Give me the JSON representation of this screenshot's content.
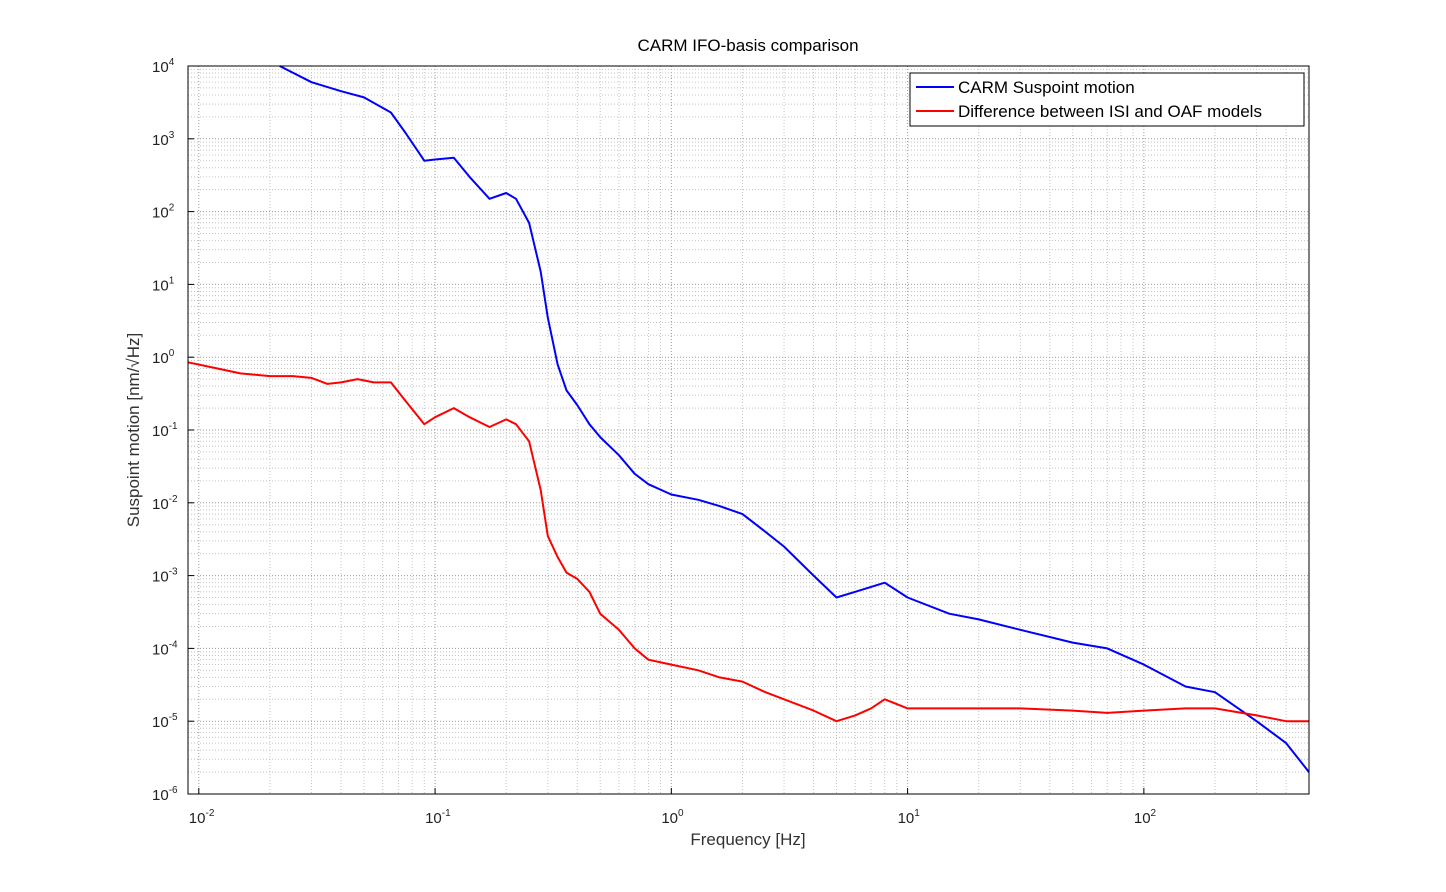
{
  "chart_data": {
    "type": "line",
    "title": "CARM IFO-basis comparison",
    "xlabel": "Frequency [Hz]",
    "ylabel": "Suspoint motion [nm/√Hz]",
    "xscale": "log",
    "yscale": "log",
    "xlim": [
      0.009,
      500
    ],
    "ylim": [
      1e-06,
      10000
    ],
    "grid": true,
    "legend_position": "top-right",
    "x_ticks": [
      {
        "base": "10",
        "exp": "-2"
      },
      {
        "base": "10",
        "exp": "-1"
      },
      {
        "base": "10",
        "exp": "0"
      },
      {
        "base": "10",
        "exp": "1"
      },
      {
        "base": "10",
        "exp": "2"
      }
    ],
    "y_ticks": [
      {
        "base": "10",
        "exp": "-6"
      },
      {
        "base": "10",
        "exp": "-5"
      },
      {
        "base": "10",
        "exp": "-4"
      },
      {
        "base": "10",
        "exp": "-3"
      },
      {
        "base": "10",
        "exp": "-2"
      },
      {
        "base": "10",
        "exp": "-1"
      },
      {
        "base": "10",
        "exp": "0"
      },
      {
        "base": "10",
        "exp": "1"
      },
      {
        "base": "10",
        "exp": "2"
      },
      {
        "base": "10",
        "exp": "3"
      },
      {
        "base": "10",
        "exp": "4"
      }
    ],
    "series": [
      {
        "name": "CARM Suspoint motion",
        "color": "#0000ff",
        "x": [
          0.022,
          0.03,
          0.04,
          0.05,
          0.065,
          0.075,
          0.09,
          0.1,
          0.12,
          0.14,
          0.17,
          0.2,
          0.22,
          0.25,
          0.28,
          0.3,
          0.33,
          0.36,
          0.4,
          0.45,
          0.5,
          0.6,
          0.7,
          0.8,
          1.0,
          1.3,
          1.6,
          2.0,
          2.5,
          3.0,
          4.0,
          5.0,
          6.0,
          7.0,
          8.0,
          10.0,
          15.0,
          20.0,
          30.0,
          50.0,
          70.0,
          100.0,
          150.0,
          200.0,
          300.0,
          400.0,
          500.0
        ],
        "y": [
          10000,
          6000,
          4500,
          3700,
          2300,
          1200,
          500,
          520,
          550,
          300,
          150,
          180,
          150,
          70,
          15,
          3.5,
          0.8,
          0.35,
          0.22,
          0.12,
          0.08,
          0.045,
          0.025,
          0.018,
          0.013,
          0.011,
          0.009,
          0.007,
          0.004,
          0.0025,
          0.001,
          0.0005,
          0.0006,
          0.0007,
          0.0008,
          0.0005,
          0.0003,
          0.00025,
          0.00018,
          0.00012,
          0.0001,
          6e-05,
          3e-05,
          2.5e-05,
          1e-05,
          5e-06,
          2e-06
        ]
      },
      {
        "name": "Difference between ISI and OAF models",
        "color": "#ff0000",
        "x": [
          0.009,
          0.012,
          0.015,
          0.02,
          0.025,
          0.03,
          0.035,
          0.04,
          0.047,
          0.055,
          0.065,
          0.075,
          0.09,
          0.1,
          0.12,
          0.14,
          0.17,
          0.2,
          0.22,
          0.25,
          0.28,
          0.3,
          0.33,
          0.36,
          0.4,
          0.45,
          0.5,
          0.6,
          0.7,
          0.8,
          1.0,
          1.3,
          1.6,
          2.0,
          2.5,
          3.0,
          4.0,
          5.0,
          6.0,
          7.0,
          8.0,
          10.0,
          15.0,
          20.0,
          30.0,
          50.0,
          70.0,
          100.0,
          150.0,
          200.0,
          300.0,
          400.0,
          500.0
        ],
        "y": [
          0.85,
          0.7,
          0.6,
          0.55,
          0.55,
          0.52,
          0.43,
          0.45,
          0.5,
          0.45,
          0.45,
          0.25,
          0.12,
          0.15,
          0.2,
          0.15,
          0.11,
          0.14,
          0.12,
          0.07,
          0.015,
          0.0035,
          0.0018,
          0.0011,
          0.0009,
          0.0006,
          0.0003,
          0.00018,
          0.0001,
          7e-05,
          6e-05,
          5e-05,
          4e-05,
          3.5e-05,
          2.5e-05,
          2e-05,
          1.4e-05,
          1e-05,
          1.2e-05,
          1.5e-05,
          2e-05,
          1.5e-05,
          1.5e-05,
          1.5e-05,
          1.5e-05,
          1.4e-05,
          1.3e-05,
          1.4e-05,
          1.5e-05,
          1.5e-05,
          1.2e-05,
          1e-05,
          1e-05
        ]
      }
    ]
  }
}
